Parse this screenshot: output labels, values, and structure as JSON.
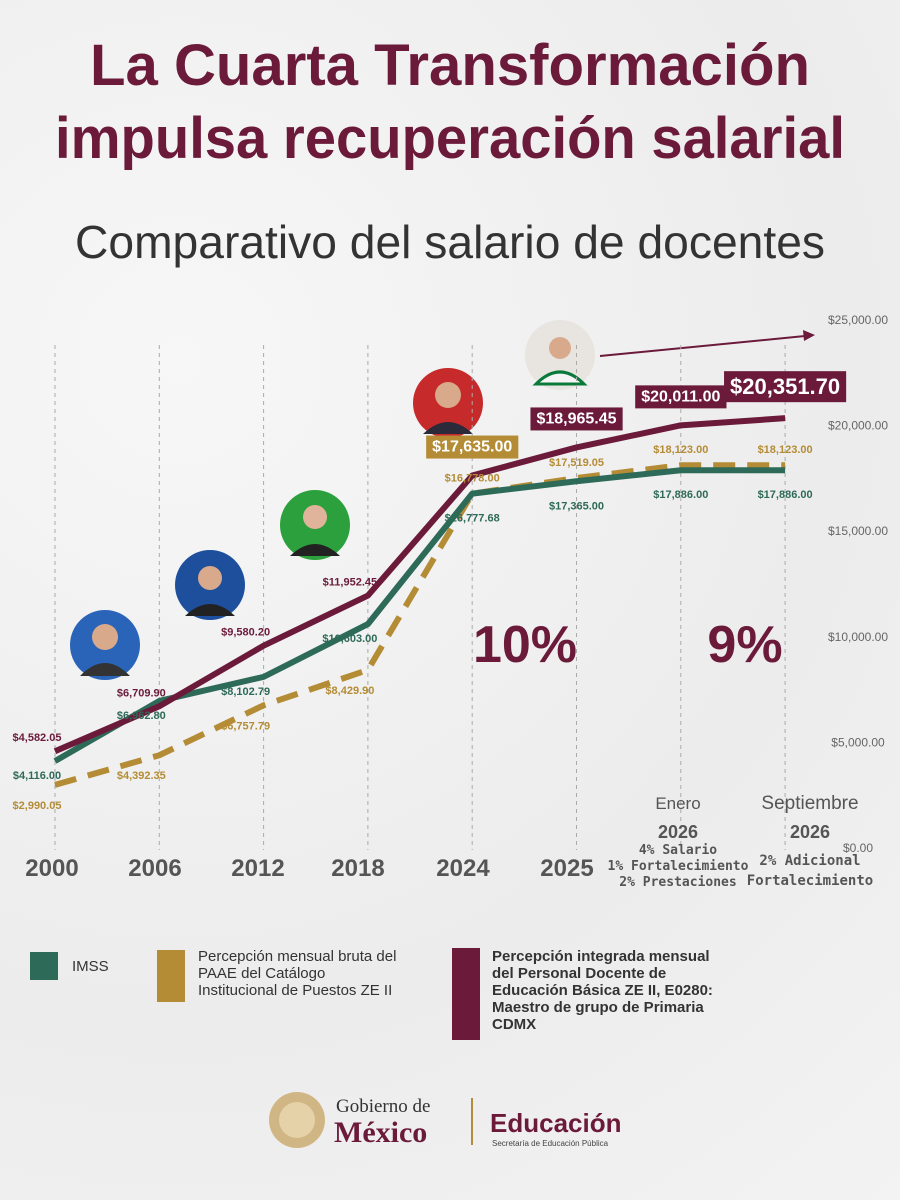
{
  "chart_data": {
    "type": "line",
    "title": [
      "La Cuarta Transformación",
      "impulsa recuperación salarial"
    ],
    "subtitle": "Comparativo del salario de docentes",
    "categories": [
      "2000",
      "2006",
      "2012",
      "2018",
      "2024",
      "2025",
      "2026",
      "2026"
    ],
    "period_notes": [
      {
        "month": "Enero",
        "lines": [
          "4% Salario",
          "1% Fortalecimiento",
          "2% Prestaciones"
        ]
      },
      {
        "month": "Septiembre",
        "lines": [
          "2% Adicional",
          "Fortalecimiento"
        ]
      }
    ],
    "series": [
      {
        "name": "IMSS",
        "color": "#2e6a58",
        "dashed": false,
        "values": [
          4116,
          6962.8,
          8102.79,
          10603,
          16777.68,
          17365,
          17886,
          17886
        ],
        "value_labels": [
          "$4,116.00",
          "$6,962.80",
          "$8,102.79",
          "$10,603.00",
          "$16,777.68",
          "$17,365.00",
          "$17,886.00",
          "$17,886.00"
        ]
      },
      {
        "name": "Percepción mensual bruta del PAAE del Catálogo Institucional de Puestos ZE II",
        "color": "#b48c35",
        "dashed": true,
        "values": [
          2990.05,
          4392.35,
          6757.79,
          8429.9,
          16778,
          17519.05,
          18123,
          18123
        ],
        "value_labels": [
          "$2,990.05",
          "$4,392.35",
          "$6,757.79",
          "$8,429.90",
          "$16,778.00",
          "$17,519.05",
          "$18,123.00",
          "$18,123.00"
        ]
      },
      {
        "name": "Percepción integrada mensual del Personal Docente de Educación Básica ZE II, E0280: Maestro de grupo de Primaria CDMX",
        "color": "#6b1a3a",
        "dashed": false,
        "values": [
          4582.05,
          6709.9,
          9580.2,
          11952.45,
          17635,
          18965.45,
          20011,
          20351.7
        ],
        "value_labels": [
          "$4,582.05",
          "$6,709.90",
          "$9,580.20",
          "$11,952.45",
          "$17,635.00",
          "$18,965.45",
          "$20,011.00",
          "$20,351.70"
        ]
      }
    ],
    "annotations": [
      "10%",
      "9%"
    ],
    "ylim": [
      0,
      25000
    ],
    "yticks": [
      {
        "value": 0,
        "label": "$0.00"
      },
      {
        "value": 5000,
        "label": "$5,000.00"
      },
      {
        "value": 10000,
        "label": "$10,000.00"
      },
      {
        "value": 15000,
        "label": "$15,000.00"
      },
      {
        "value": 20000,
        "label": "$20,000.00"
      },
      {
        "value": 25000,
        "label": "$25,000.00"
      }
    ],
    "x_grid": true
  },
  "footer": {
    "gobierno": "Gobierno de",
    "mexico": "México",
    "educacion": "Educación",
    "sep": "Secretaría de Educación Pública"
  }
}
